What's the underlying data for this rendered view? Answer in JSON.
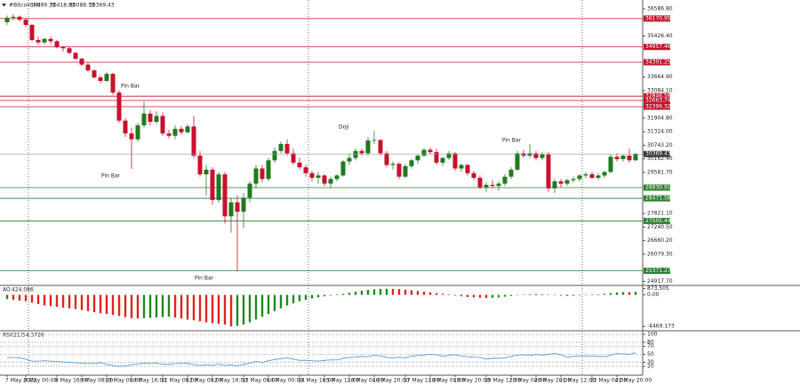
{
  "chart_data": [
    {
      "type": "candlestick",
      "title": "#Bitcoin,H4",
      "categories": [
        "7 May 2022",
        null,
        null,
        "8 May 00:00",
        null,
        null,
        null,
        null,
        "8 May 16:00",
        null,
        null,
        null,
        "9 May 08:00",
        null,
        null,
        null,
        "10 May 00:00",
        null,
        null,
        null,
        "10 May 16:00",
        null,
        null,
        null,
        null,
        "11 May 08:00",
        null,
        null,
        null,
        "12 May 00:00",
        null,
        null,
        null,
        "12 May 16:00",
        null,
        null,
        null,
        null,
        "13 May 08:00",
        null,
        null,
        null,
        "14 May 00:00",
        null,
        null,
        null,
        null,
        "14 May 16:00",
        null,
        null,
        null,
        "15 May 12:00",
        null,
        null,
        null,
        "16 May 04:00",
        null,
        null,
        null,
        "16 May 20:00",
        null,
        null,
        null,
        null,
        "17 May 12:00",
        null,
        null,
        null,
        "18 May 04:00",
        null,
        null,
        null,
        "18 May 20:00",
        null,
        null,
        null,
        null,
        "19 May 12:00",
        null,
        null,
        null,
        "20 May 04:00",
        null,
        null,
        null,
        "20 May 20:00",
        null,
        null,
        null,
        "21 May 12:00",
        null,
        null,
        null,
        null,
        "22 May 04:00",
        null,
        null,
        null,
        "22 May 20:00",
        null,
        null,
        null
      ],
      "open": [
        36015,
        36206,
        36250,
        36120,
        35900,
        35253,
        35150,
        35300,
        35200,
        34950,
        34900,
        34700,
        34450,
        34200,
        33950,
        33650,
        33500,
        33800,
        33000,
        31800,
        31250,
        31000,
        31600,
        32100,
        31750,
        32000,
        31250,
        31150,
        31450,
        31300,
        31550,
        30300,
        29500,
        29700,
        28400,
        29500,
        27700,
        28300,
        27900,
        28500,
        29100,
        29750,
        29300,
        30100,
        30500,
        30800,
        30400,
        30000,
        29800,
        29550,
        29350,
        29450,
        29100,
        29300,
        29450,
        30050,
        30200,
        30500,
        30400,
        30950,
        30970,
        30400,
        29900,
        29950,
        29400,
        29850,
        30100,
        30300,
        30550,
        30450,
        30000,
        30200,
        30400,
        29750,
        29900,
        29550,
        29350,
        28950,
        29050,
        29000,
        29100,
        29400,
        29700,
        30400,
        30300,
        30400,
        30200,
        30350,
        28900,
        29200,
        29100,
        29250,
        29300,
        29450,
        29500,
        29350,
        29450,
        29600,
        30250,
        30150,
        30300,
        30099.73
      ],
      "high": [
        36300,
        36350,
        36300,
        36200,
        35950,
        35400,
        35350,
        35400,
        35250,
        35000,
        34950,
        34750,
        34500,
        34300,
        34000,
        33750,
        33900,
        33850,
        33100,
        31900,
        31500,
        31700,
        32600,
        32250,
        32200,
        32150,
        31400,
        31600,
        31550,
        31650,
        32000,
        30500,
        29900,
        29800,
        29600,
        29600,
        28500,
        28600,
        28700,
        29200,
        29900,
        29900,
        30200,
        30650,
        30900,
        31000,
        30600,
        30200,
        29900,
        29650,
        29600,
        29500,
        29400,
        29500,
        30100,
        30400,
        30600,
        30600,
        31100,
        31350,
        31000,
        30500,
        30050,
        30000,
        29950,
        30150,
        30350,
        30600,
        30650,
        30600,
        30250,
        30500,
        30450,
        29950,
        29950,
        29650,
        29450,
        29150,
        29250,
        29200,
        29500,
        29800,
        30500,
        30550,
        30800,
        30500,
        30450,
        30450,
        29300,
        29300,
        29300,
        29400,
        29500,
        29600,
        29600,
        29550,
        29650,
        30350,
        30400,
        30350,
        30600,
        30418.83
      ],
      "low": [
        35900,
        36100,
        36050,
        35800,
        35200,
        35063,
        35050,
        35100,
        34900,
        34750,
        34650,
        34400,
        34150,
        33900,
        33600,
        33400,
        33450,
        32900,
        31700,
        31100,
        29730,
        30900,
        31500,
        31600,
        31650,
        31150,
        31050,
        31000,
        31200,
        31250,
        30200,
        29400,
        28600,
        28200,
        28300,
        27400,
        27000,
        25350,
        27200,
        28300,
        28900,
        29150,
        29200,
        30000,
        30400,
        30300,
        29900,
        29700,
        29400,
        29200,
        29100,
        29000,
        28900,
        29200,
        29400,
        29900,
        30100,
        30300,
        30300,
        30800,
        30300,
        29800,
        29700,
        29300,
        29350,
        29750,
        29950,
        30250,
        30350,
        29900,
        29850,
        30100,
        29650,
        29600,
        29450,
        29250,
        28850,
        28750,
        28900,
        28800,
        29000,
        29300,
        29650,
        30200,
        30200,
        30100,
        30100,
        28750,
        28700,
        28950,
        29000,
        29150,
        29200,
        29350,
        29300,
        29250,
        29350,
        29550,
        30050,
        30050,
        30000,
        30088.13
      ],
      "close": [
        36206,
        36250,
        36120,
        35900,
        35253,
        35150,
        35300,
        35200,
        34950,
        34900,
        34700,
        34450,
        34200,
        33950,
        33650,
        33500,
        33800,
        33000,
        31800,
        31250,
        31000,
        31600,
        32100,
        31750,
        32000,
        31250,
        31150,
        31450,
        31300,
        31550,
        30300,
        29500,
        29700,
        28400,
        29500,
        27700,
        28300,
        27900,
        28500,
        29100,
        29750,
        29300,
        30100,
        30500,
        30800,
        30400,
        30000,
        29800,
        29550,
        29350,
        29450,
        29100,
        29300,
        29450,
        30050,
        30200,
        30500,
        30400,
        30950,
        30970,
        30400,
        29900,
        29950,
        29400,
        29850,
        30100,
        30300,
        30550,
        30450,
        30000,
        30200,
        30400,
        29750,
        29900,
        29550,
        29350,
        28950,
        29050,
        29000,
        29100,
        29400,
        29700,
        30400,
        30300,
        30400,
        30200,
        30350,
        28900,
        29200,
        29100,
        29250,
        29300,
        29450,
        29500,
        29350,
        29450,
        29600,
        30250,
        30150,
        30300,
        30099.73,
        30369.43
      ],
      "up_color": "#1f7a1f",
      "down_color": "#c8102e",
      "ylim": [
        24780,
        36890
      ],
      "yticks": [
        {
          "value": 36586.8,
          "label": "36586.80"
        },
        {
          "value": 35426.4,
          "label": "35426.40"
        },
        {
          "value": 33664.9,
          "label": "33664.90"
        },
        {
          "value": 33084.1,
          "label": "33084.10"
        },
        {
          "value": 31904.8,
          "label": "31904.80"
        },
        {
          "value": 31324,
          "label": "31324.00"
        },
        {
          "value": 30743.2,
          "label": "30743.20"
        },
        {
          "value": 30162.4,
          "label": "30162.40"
        },
        {
          "value": 29581.7,
          "label": "29581.70"
        },
        {
          "value": 27821.1,
          "label": "27821.10"
        },
        {
          "value": 27240.5,
          "label": "27240.50"
        },
        {
          "value": 26660.2,
          "label": "26660.20"
        },
        {
          "value": 26079.3,
          "label": "26079.30"
        },
        {
          "value": 24917.7,
          "label": "24917.70"
        }
      ],
      "levels": [
        36170.95,
        34957.46,
        34301.25,
        32846.58,
        32663.74,
        32396.32,
        28930.91,
        28471.58,
        27505.44,
        25371.27
      ],
      "level_colors": [
        "#c0142c",
        "#c0142c",
        "#c0142c",
        "#c0142c",
        "#c0142c",
        "#c0142c",
        "#2e7d32",
        "#2e7d32",
        "#2e7d32",
        "#2e7d32"
      ],
      "annotations": [
        "Pin Bar",
        "Pin Bar",
        "Doji",
        "Pin Bar",
        "Pin Bar"
      ]
    },
    {
      "type": "bar",
      "title": "AO",
      "values": [
        -600,
        -700,
        -800,
        -900,
        -1100,
        -1300,
        -1500,
        -1600,
        -1700,
        -1800,
        -1900,
        -2000,
        -2150,
        -2300,
        -2450,
        -2600,
        -2700,
        -2850,
        -3000,
        -3150,
        -3300,
        -3350,
        -3300,
        -3250,
        -3200,
        -3150,
        -3100,
        -3200,
        -3350,
        -3500,
        -3600,
        -3750,
        -3900,
        -4000,
        -4100,
        -4200,
        -4469.173,
        -4400,
        -4200,
        -3900,
        -3500,
        -3100,
        -2700,
        -2300,
        -1900,
        -1500,
        -1200,
        -900,
        -700,
        -500,
        -350,
        -200,
        -100,
        50,
        150,
        300,
        450,
        600,
        700,
        800,
        850,
        873.505,
        860,
        820,
        750,
        650,
        550,
        450,
        350,
        250,
        150,
        50,
        -100,
        -200,
        -300,
        -350,
        -400,
        -420,
        -400,
        -350,
        -250,
        -150,
        -50,
        50,
        100,
        150,
        100,
        50,
        -50,
        -100,
        -150,
        -120,
        -80,
        -30,
        30,
        80,
        150,
        250,
        350,
        400,
        380,
        424.086
      ],
      "up_color": "#1f8a1f",
      "down_color": "#e0241e",
      "ylim": [
        -4960,
        1090
      ],
      "yticks": [
        873.505,
        {
          "value": 0,
          "label": "0.00"
        },
        -4469.173
      ]
    },
    {
      "type": "line",
      "title": "RSI(21)",
      "values": [
        42,
        42,
        41,
        38,
        33,
        33,
        34,
        33,
        32,
        31,
        30,
        29,
        28,
        27,
        27,
        29,
        25,
        22,
        20,
        21,
        24,
        26,
        28,
        27,
        28,
        25,
        25,
        27,
        27,
        28,
        24,
        22,
        24,
        22,
        26,
        22,
        24,
        21,
        25,
        28,
        32,
        30,
        34,
        37,
        39,
        41,
        38,
        35,
        35,
        34,
        33,
        35,
        36,
        36,
        40,
        42,
        43,
        45,
        44,
        48,
        46,
        42,
        41,
        43,
        41,
        45,
        47,
        48,
        50,
        49,
        45,
        47,
        49,
        46,
        44,
        43,
        42,
        38,
        40,
        40,
        41,
        45,
        48,
        49,
        47,
        50,
        48,
        50,
        52,
        49,
        43,
        45,
        46,
        46,
        46,
        45,
        44,
        48,
        52,
        51,
        50,
        54.3726
      ],
      "color": "#5b9bd5",
      "ylim": [
        0,
        100
      ],
      "yticks": [
        100,
        80,
        70,
        50,
        30,
        20
      ],
      "grid": true
    }
  ]
}
